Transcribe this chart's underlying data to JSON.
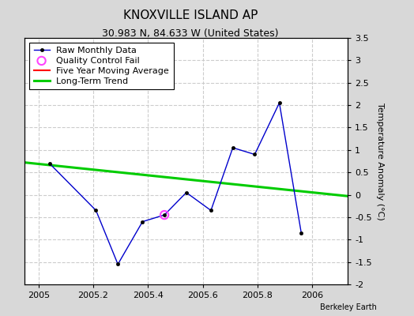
{
  "title": "KNOXVILLE ISLAND AP",
  "subtitle": "30.983 N, 84.633 W (United States)",
  "credit": "Berkeley Earth",
  "ylabel_right": "Temperature Anomaly (°C)",
  "xlim": [
    2004.95,
    2006.13
  ],
  "ylim": [
    -2.0,
    3.5
  ],
  "yticks": [
    -2.0,
    -1.5,
    -1.0,
    -0.5,
    0.0,
    0.5,
    1.0,
    1.5,
    2.0,
    2.5,
    3.0,
    3.5
  ],
  "ytick_labels": [
    "-2",
    "-1.5",
    "-1",
    "-0.5",
    "0",
    "0.5",
    "1",
    "1.5",
    "2",
    "2.5",
    "3",
    "3.5"
  ],
  "xticks": [
    2005,
    2005.2,
    2005.4,
    2005.6,
    2005.8,
    2006
  ],
  "xtick_labels": [
    "2005",
    "2005.2",
    "2005.4",
    "2005.6",
    "2005.8",
    "2006"
  ],
  "raw_x": [
    2005.04,
    2005.21,
    2005.29,
    2005.38,
    2005.46,
    2005.54,
    2005.63,
    2005.71,
    2005.79,
    2005.88,
    2005.96
  ],
  "raw_y": [
    0.7,
    -0.35,
    -1.55,
    -0.6,
    -0.45,
    0.05,
    -0.35,
    1.05,
    0.9,
    2.05,
    -0.85
  ],
  "qc_fail_x": [
    2005.46
  ],
  "qc_fail_y": [
    -0.45
  ],
  "trend_x": [
    2004.95,
    2006.13
  ],
  "trend_y": [
    0.72,
    -0.03
  ],
  "raw_line_color": "#0000cc",
  "raw_marker_facecolor": "#000000",
  "raw_marker_edgecolor": "#000000",
  "trend_color": "#00cc00",
  "moving_avg_color": "#ff0000",
  "qc_fail_color": "#ff44ff",
  "fig_background_color": "#d8d8d8",
  "plot_background_color": "#ffffff",
  "grid_color": "#cccccc",
  "title_fontsize": 11,
  "subtitle_fontsize": 9,
  "tick_fontsize": 8,
  "legend_fontsize": 8
}
